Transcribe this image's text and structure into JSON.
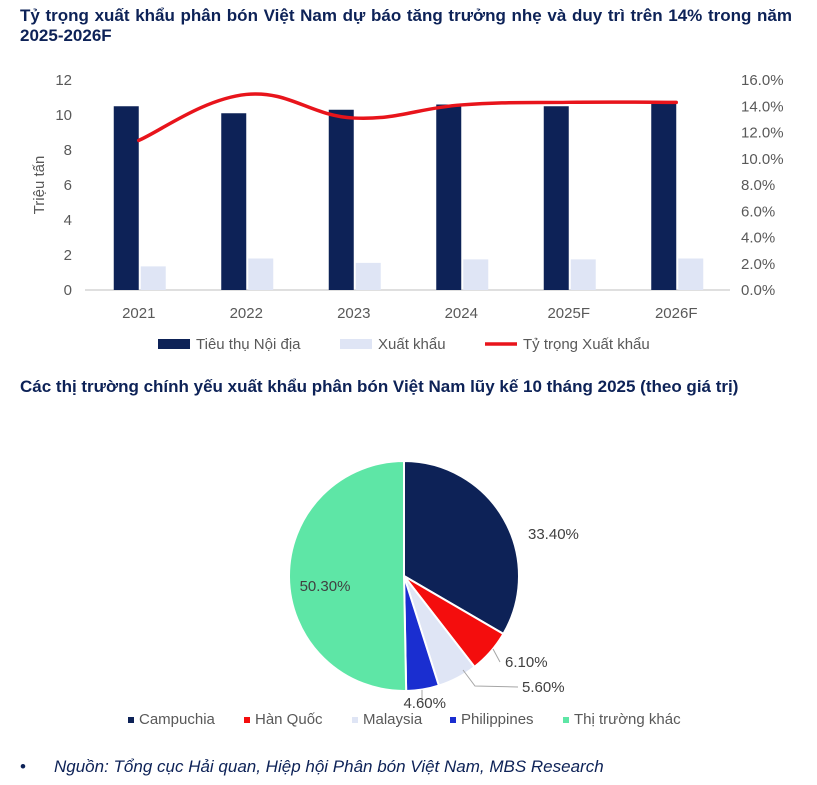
{
  "chart1": {
    "title": "Tỷ trọng xuất khẩu phân bón Việt Nam dự báo tăng trưởng nhẹ và duy trì trên 14% trong năm 2025-2026F",
    "chart_data": {
      "type": "bar",
      "categories": [
        "2021",
        "2022",
        "2023",
        "2024",
        "2025F",
        "2026F"
      ],
      "ylabel": "Triệu tấn",
      "ylim": [
        0,
        12
      ],
      "y_ticks": [
        "0",
        "2",
        "4",
        "6",
        "8",
        "10",
        "12"
      ],
      "y2lim": [
        0,
        0.16
      ],
      "y2_ticks": [
        "0.0%",
        "2.0%",
        "4.0%",
        "6.0%",
        "8.0%",
        "10.0%",
        "12.0%",
        "14.0%",
        "16.0%"
      ],
      "grid": false,
      "legend_position": "bottom",
      "series": [
        {
          "name": "Tiêu thụ Nội địa",
          "type": "bar",
          "axis": "left",
          "color": "#0d2257",
          "values": [
            10.5,
            10.1,
            10.3,
            10.6,
            10.5,
            10.7
          ]
        },
        {
          "name": "Xuất khẩu",
          "type": "bar",
          "axis": "left",
          "color": "#dfe5f5",
          "values": [
            1.35,
            1.8,
            1.55,
            1.75,
            1.75,
            1.8
          ]
        },
        {
          "name": "Tỷ trọng Xuất khẩu",
          "type": "line",
          "axis": "right",
          "color": "#e8141b",
          "values": [
            0.114,
            0.149,
            0.131,
            0.141,
            0.143,
            0.143
          ]
        }
      ]
    }
  },
  "chart2": {
    "title": "Các thị trường chính yếu xuất khẩu phân bón Việt Nam lũy kế 10 tháng 2025 (theo giá trị)",
    "chart_data": {
      "type": "pie",
      "legend_position": "bottom",
      "slices": [
        {
          "name": "Campuchia",
          "value": 33.4,
          "label": "33.40%",
          "color": "#0d2257"
        },
        {
          "name": "Hàn Quốc",
          "value": 6.1,
          "label": "6.10%",
          "color": "#f40d0d"
        },
        {
          "name": "Malaysia",
          "value": 5.6,
          "label": "5.60%",
          "color": "#dfe5f5"
        },
        {
          "name": "Philippines",
          "value": 4.6,
          "label": "4.60%",
          "color": "#1a2ed0"
        },
        {
          "name": "Thị trường khác",
          "value": 50.3,
          "label": "50.30%",
          "color": "#5ee6a6"
        }
      ]
    }
  },
  "source": "Nguồn: Tổng cục Hải quan, Hiệp hội Phân bón Việt Nam, MBS Research"
}
